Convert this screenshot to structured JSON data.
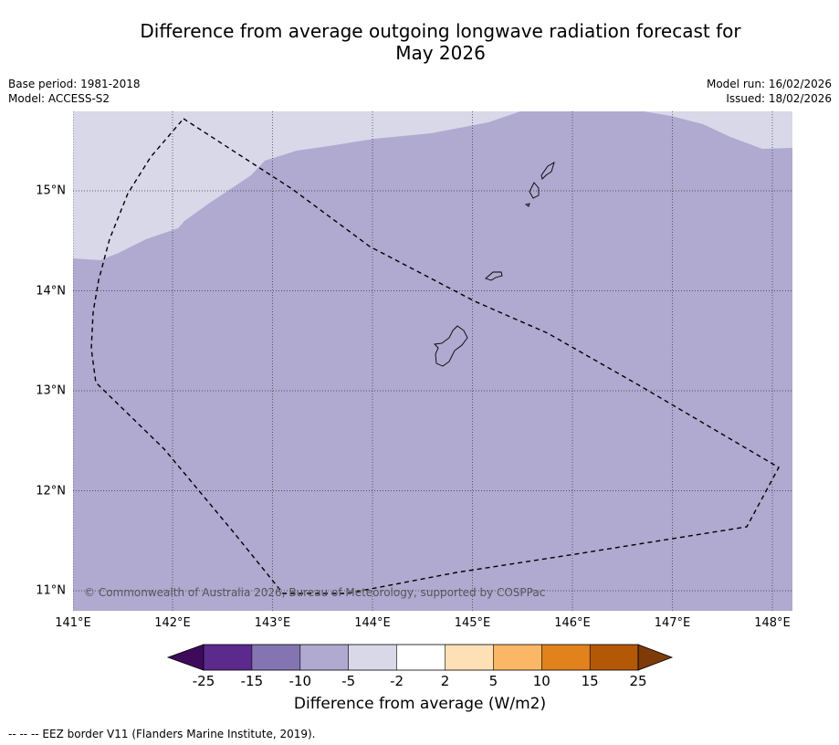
{
  "map": {
    "title_line1": "Difference from average outgoing longwave radiation forecast for",
    "title_line2": "May 2026",
    "base_period": "Base period: 1981-2018",
    "model": "Model: ACCESS-S2",
    "model_run": "Model run: 16/02/2026",
    "issued": "Issued: 18/02/2026",
    "copyright": "© Commonwealth of Australia 2026, Bureau of Meteorology, supported by COSPPac",
    "footnote": "--  --  -- EEZ border V11 (Flanders Marine Institute, 2019).",
    "x_ticks": [
      "141°E",
      "142°E",
      "143°E",
      "144°E",
      "145°E",
      "146°E",
      "147°E",
      "148°E"
    ],
    "y_ticks": [
      "15°N",
      "14°N",
      "13°N",
      "12°N",
      "11°N"
    ],
    "colors": {
      "field_main": "#b0a9d0",
      "field_light": "#d8d8e9",
      "grid": "#333333"
    }
  },
  "colorbar": {
    "title": "Difference from average (W/m2)",
    "labels": [
      "-25",
      "-15",
      "-10",
      "-5",
      "-2",
      "2",
      "5",
      "10",
      "15",
      "25"
    ],
    "colors": [
      "#3f0a5c",
      "#5b2a8c",
      "#8475b2",
      "#b0a9d0",
      "#d8d8e9",
      "#ffffff",
      "#fde0b5",
      "#fbb765",
      "#e1821c",
      "#b35807",
      "#7e3b08"
    ]
  }
}
